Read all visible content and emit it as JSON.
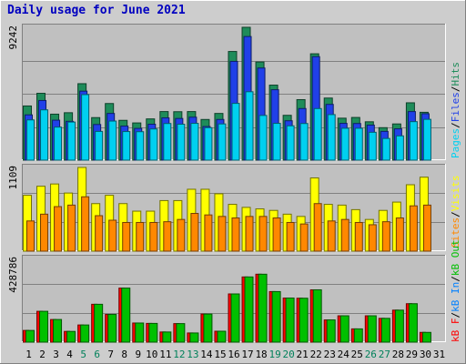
{
  "chart_data": [
    {
      "type": "bar",
      "title": "Daily usage for June 2021",
      "ymax_label": "9242",
      "categories": [
        "1",
        "2",
        "3",
        "4",
        "5",
        "6",
        "7",
        "8",
        "9",
        "10",
        "11",
        "12",
        "13",
        "14",
        "15",
        "16",
        "17",
        "18",
        "19",
        "20",
        "21",
        "22",
        "23",
        "24",
        "25",
        "26",
        "27",
        "28",
        "29",
        "30",
        "31"
      ],
      "weekend_days": [
        "5",
        "6",
        "12",
        "13",
        "19",
        "20",
        "26",
        "27"
      ],
      "series": [
        {
          "name": "Hits",
          "color": "#1e8c5a",
          "values": [
            3770,
            4650,
            3200,
            3300,
            5320,
            2960,
            3940,
            2770,
            2590,
            2870,
            3380,
            3370,
            3380,
            2830,
            3250,
            7560,
            9242,
            6830,
            5220,
            3120,
            4210,
            7400,
            4320,
            2920,
            2970,
            2670,
            2260,
            2520,
            3990,
            3330,
            0
          ]
        },
        {
          "name": "Files",
          "color": "#2040e8",
          "values": [
            3150,
            4150,
            2780,
            2700,
            4800,
            2480,
            3250,
            2370,
            2210,
            2500,
            2940,
            2900,
            2990,
            2340,
            2830,
            6870,
            8600,
            6410,
            4900,
            2740,
            3590,
            7200,
            3880,
            2560,
            2550,
            2440,
            2000,
            2180,
            3380,
            3230,
            0
          ]
        },
        {
          "name": "Pages",
          "color": "#00d0f0",
          "values": [
            2800,
            3500,
            2300,
            2650,
            4560,
            2000,
            2720,
            1990,
            1980,
            2170,
            2550,
            2500,
            2560,
            2260,
            2520,
            3950,
            4760,
            3110,
            2560,
            2390,
            2550,
            3590,
            3170,
            2220,
            2220,
            1940,
            1510,
            1690,
            2680,
            2840,
            0
          ]
        }
      ],
      "legend": [
        "Pages",
        "Files",
        "Hits"
      ]
    },
    {
      "type": "bar",
      "ymax_label": "1109",
      "categories": [
        "1",
        "2",
        "3",
        "4",
        "5",
        "6",
        "7",
        "8",
        "9",
        "10",
        "11",
        "12",
        "13",
        "14",
        "15",
        "16",
        "17",
        "18",
        "19",
        "20",
        "21",
        "22",
        "23",
        "24",
        "25",
        "26",
        "27",
        "28",
        "29",
        "30",
        "31"
      ],
      "series": [
        {
          "name": "Visits",
          "color": "#ffff00",
          "values": [
            740,
            860,
            890,
            770,
            1109,
            630,
            740,
            630,
            530,
            530,
            670,
            670,
            820,
            820,
            760,
            620,
            580,
            560,
            540,
            490,
            460,
            970,
            620,
            610,
            550,
            420,
            540,
            650,
            880,
            980,
            0
          ]
        },
        {
          "name": "Sites",
          "color": "#ff8800",
          "values": [
            400,
            490,
            590,
            610,
            720,
            470,
            410,
            380,
            380,
            380,
            390,
            420,
            500,
            480,
            460,
            440,
            460,
            460,
            440,
            380,
            360,
            630,
            400,
            420,
            380,
            350,
            390,
            440,
            600,
            610,
            0
          ]
        }
      ],
      "legend": [
        "Sites",
        "Visits"
      ]
    },
    {
      "type": "bar",
      "ymax_label": "428786",
      "categories": [
        "1",
        "2",
        "3",
        "4",
        "5",
        "6",
        "7",
        "8",
        "9",
        "10",
        "11",
        "12",
        "13",
        "14",
        "15",
        "16",
        "17",
        "18",
        "19",
        "20",
        "21",
        "22",
        "23",
        "24",
        "25",
        "26",
        "27",
        "28",
        "29",
        "30",
        "31"
      ],
      "series": [
        {
          "name": "kB F",
          "color": "#ff0000",
          "values": [
            0,
            0,
            0,
            0,
            0,
            0,
            0,
            0,
            0,
            0,
            0,
            0,
            0,
            0,
            0,
            0,
            0,
            0,
            0,
            0,
            0,
            0,
            0,
            0,
            0,
            0,
            0,
            0,
            0,
            0,
            0
          ]
        },
        {
          "name": "kB In",
          "color": "#0080ff",
          "values": [
            0,
            0,
            0,
            0,
            0,
            0,
            0,
            0,
            0,
            0,
            0,
            0,
            0,
            0,
            0,
            0,
            0,
            0,
            0,
            0,
            0,
            0,
            0,
            0,
            0,
            0,
            0,
            0,
            0,
            0,
            0
          ]
        },
        {
          "name": "kB Out",
          "color": "#00c000",
          "values": [
            60000,
            158000,
            116000,
            55000,
            88000,
            194000,
            142000,
            277000,
            98000,
            96000,
            52000,
            95000,
            47000,
            144000,
            56000,
            247000,
            334000,
            348000,
            259000,
            226000,
            225000,
            268000,
            114000,
            135000,
            68000,
            135000,
            122000,
            164000,
            197000,
            50000,
            0
          ]
        }
      ],
      "legend": [
        "kB F",
        "kB In",
        "kB Out"
      ]
    }
  ]
}
